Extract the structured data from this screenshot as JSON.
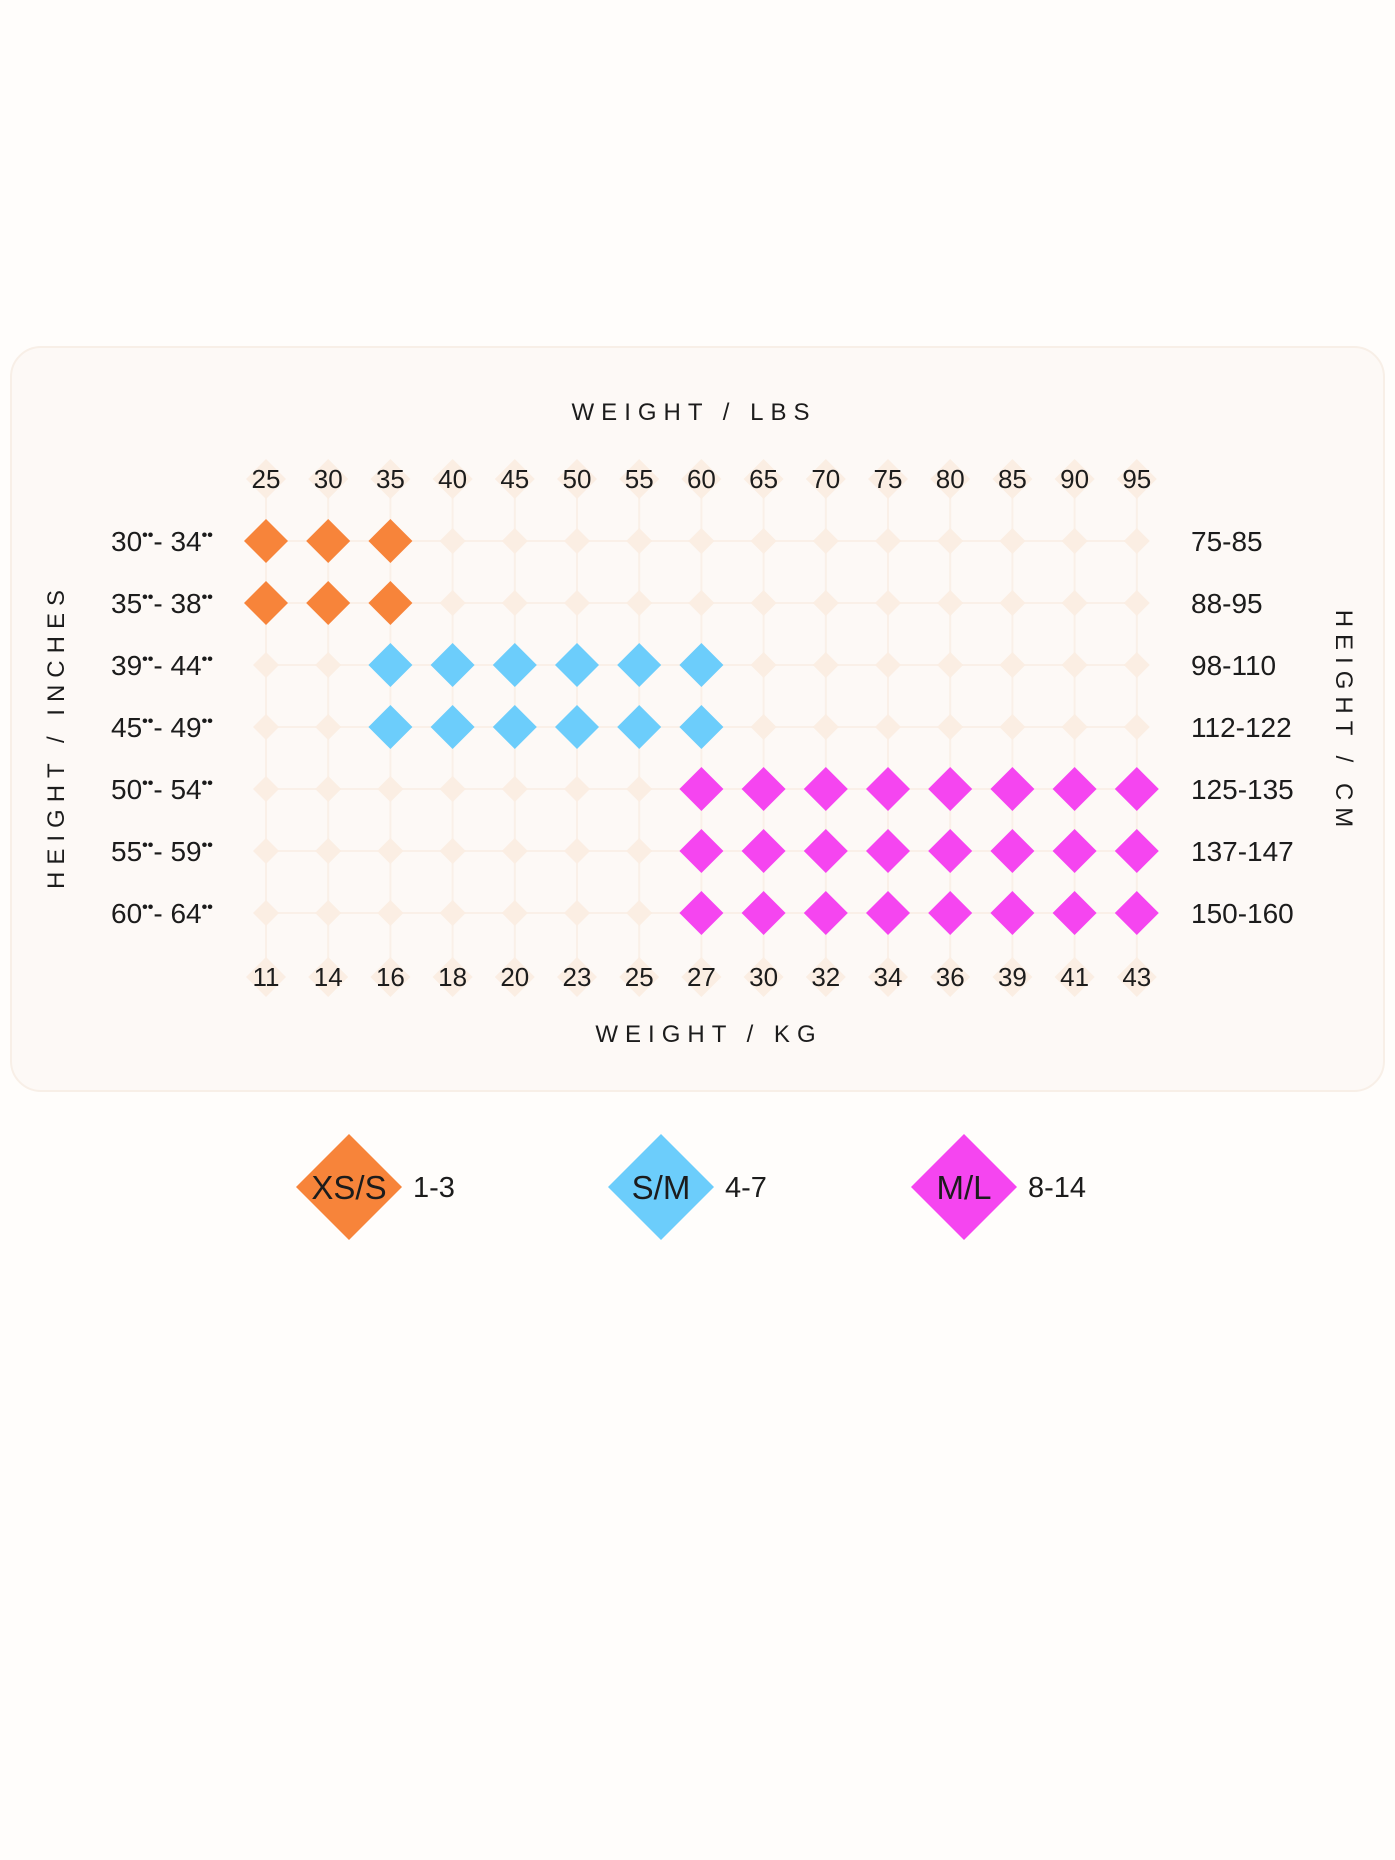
{
  "chart_data": {
    "type": "heatmap",
    "top_axis_title": "WEIGHT / LBS",
    "bottom_axis_title": "WEIGHT / KG",
    "left_axis_title": "HEIGHT / INCHES",
    "right_axis_title": "HEIGHT / CM",
    "weight_lbs": [
      "25",
      "30",
      "35",
      "40",
      "45",
      "50",
      "55",
      "60",
      "65",
      "70",
      "75",
      "80",
      "85",
      "90",
      "95"
    ],
    "weight_kg": [
      "11",
      "14",
      "16",
      "18",
      "20",
      "23",
      "25",
      "27",
      "30",
      "32",
      "34",
      "36",
      "39",
      "41",
      "43"
    ],
    "height_inches": [
      {
        "from": "30",
        "to": "34"
      },
      {
        "from": "35",
        "to": "38"
      },
      {
        "from": "39",
        "to": "44"
      },
      {
        "from": "45",
        "to": "49"
      },
      {
        "from": "50",
        "to": "54"
      },
      {
        "from": "55",
        "to": "59"
      },
      {
        "from": "60",
        "to": "64"
      }
    ],
    "height_cm": [
      "75-85",
      "88-95",
      "98-110",
      "112-122",
      "125-135",
      "137-147",
      "150-160"
    ],
    "sizes": [
      {
        "label": "XS/S",
        "range": "1-3",
        "color": "#f7843a"
      },
      {
        "label": "S/M",
        "range": "4-7",
        "color": "#6ccdfb"
      },
      {
        "label": "M/L",
        "range": "8-14",
        "color": "#f545f0"
      }
    ],
    "cells": [
      {
        "size": 0,
        "rows": [
          0,
          1
        ],
        "cols": [
          0,
          2
        ]
      },
      {
        "size": 1,
        "rows": [
          2,
          3
        ],
        "cols": [
          2,
          7
        ]
      },
      {
        "size": 2,
        "rows": [
          4,
          6
        ],
        "cols": [
          7,
          14
        ]
      }
    ],
    "empty_marker_color": "#fbeee3",
    "panel_color": "#fdf9f6"
  }
}
